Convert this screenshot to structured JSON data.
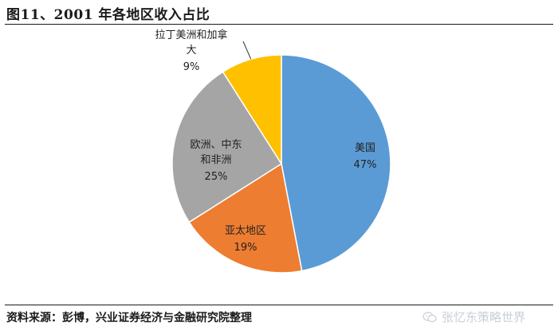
{
  "title": "图11、2001 年各地区收入占比",
  "source": "资料来源：彭博，兴业证券经济与金融研究院整理",
  "watermark": "张忆东策略世界",
  "watermark_icon": "wechat-icon",
  "chart_data": {
    "type": "pie",
    "title": "图11、2001 年各地区收入占比",
    "slices": [
      {
        "label": "美国",
        "value": 47,
        "value_label": "47%",
        "color": "#5B9BD5"
      },
      {
        "label": "亚太地区",
        "value": 19,
        "value_label": "19%",
        "color": "#ED7D31"
      },
      {
        "label": "欧洲、中东和非洲",
        "value": 25,
        "value_label": "25%",
        "color": "#A5A5A5"
      },
      {
        "label": "拉丁美洲和加拿大",
        "value": 9,
        "value_label": "9%",
        "color": "#FFC000"
      }
    ],
    "start_angle_deg": 0,
    "direction": "clockwise",
    "legend": "none"
  }
}
